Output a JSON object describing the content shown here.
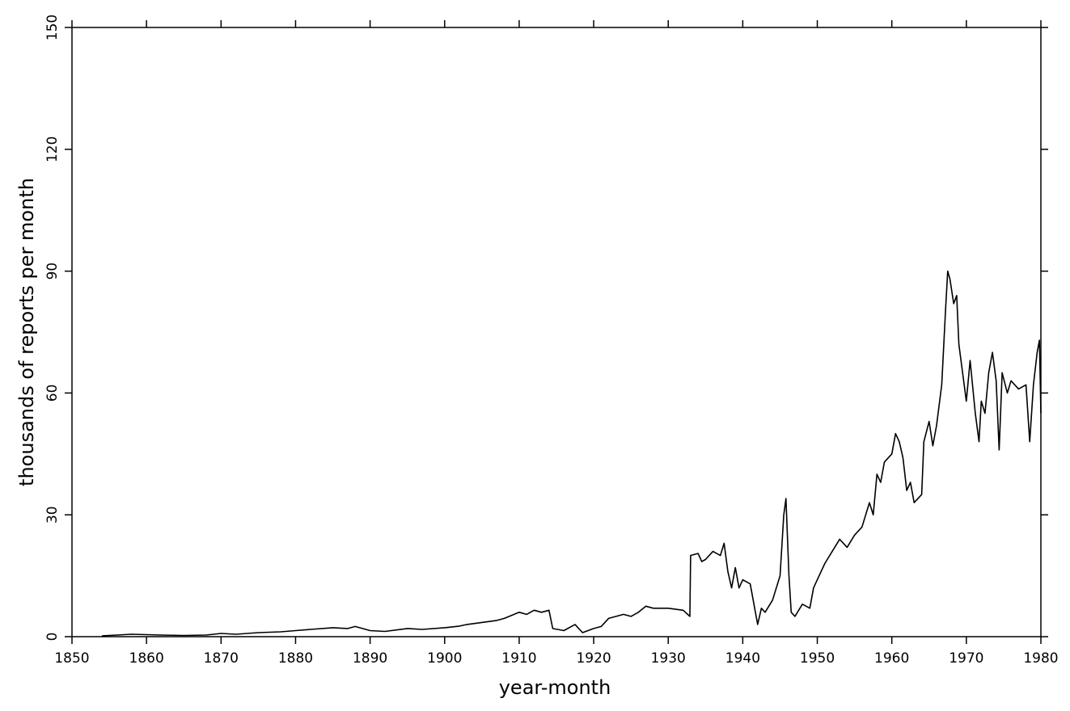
{
  "chart_data": {
    "type": "line",
    "xlabel": "year-month",
    "ylabel": "thousands of reports per month",
    "color": "#000000",
    "x": [
      1854,
      1856,
      1858,
      1860,
      1862,
      1865,
      1868,
      1870,
      1872,
      1875,
      1878,
      1880,
      1882,
      1885,
      1887,
      1888,
      1890,
      1892,
      1895,
      1897,
      1900,
      1902,
      1903,
      1905,
      1907,
      1908,
      1910,
      1911,
      1912,
      1913,
      1914,
      1914.5,
      1916,
      1917.5,
      1918.5,
      1920,
      1921,
      1922,
      1923,
      1924,
      1925,
      1926,
      1927,
      1928,
      1930,
      1932,
      1932.9,
      1933,
      1934,
      1934.5,
      1935,
      1936,
      1937,
      1937.5,
      1938,
      1938.5,
      1939,
      1939.5,
      1940,
      1941,
      1941.5,
      1942,
      1942.5,
      1943,
      1944,
      1945,
      1945.5,
      1945.8,
      1946.2,
      1946.5,
      1947,
      1948,
      1949,
      1949.5,
      1950,
      1951,
      1952,
      1953,
      1954,
      1955,
      1956,
      1957,
      1957.5,
      1958,
      1958.5,
      1959,
      1960,
      1960.5,
      1961,
      1961.5,
      1962,
      1962.5,
      1963,
      1964,
      1964.3,
      1965,
      1965.5,
      1966,
      1966.7,
      1967.2,
      1967.5,
      1967.8,
      1968.3,
      1968.7,
      1969,
      1969.5,
      1970,
      1970.5,
      1971.2,
      1971.7,
      1972,
      1972.5,
      1973,
      1973.5,
      1974,
      1974.4,
      1974.8,
      1975.5,
      1976,
      1977,
      1978,
      1978.5,
      1979,
      1979.5,
      1979.8,
      1980
    ],
    "values": [
      0.2,
      0.4,
      0.6,
      0.5,
      0.4,
      0.3,
      0.4,
      0.8,
      0.6,
      1.0,
      1.2,
      1.5,
      1.8,
      2.2,
      2.0,
      2.5,
      1.5,
      1.3,
      2.0,
      1.8,
      2.2,
      2.6,
      3.0,
      3.5,
      4.0,
      4.5,
      6.0,
      5.5,
      6.5,
      6.0,
      6.5,
      2.0,
      1.5,
      3.0,
      1.0,
      2.0,
      2.5,
      4.5,
      5.0,
      5.5,
      5.0,
      6.0,
      7.5,
      7.0,
      7.0,
      6.5,
      5.0,
      20,
      20.5,
      18.5,
      19,
      21,
      20,
      23,
      16,
      12,
      17,
      12,
      14,
      13,
      8,
      3,
      7,
      6,
      9,
      15,
      30,
      34,
      15,
      6,
      5,
      8,
      7,
      12,
      14,
      18,
      21,
      24,
      22,
      25,
      27,
      33,
      30,
      40,
      38,
      43,
      45,
      50,
      48,
      44,
      36,
      38,
      33,
      35,
      48,
      53,
      47,
      52,
      62,
      80,
      90,
      88,
      82,
      84,
      72,
      65,
      58,
      68,
      55,
      48,
      58,
      55,
      65,
      70,
      63,
      46,
      65,
      60,
      63,
      61,
      62,
      48,
      62,
      70,
      73,
      55
    ],
    "xlim": [
      1850,
      1980
    ],
    "xticks": [
      1850,
      1860,
      1870,
      1880,
      1890,
      1900,
      1910,
      1920,
      1930,
      1940,
      1950,
      1960,
      1970,
      1980
    ],
    "ylim": [
      0,
      150
    ],
    "yticks": [
      0,
      30,
      60,
      90,
      120,
      150
    ]
  }
}
